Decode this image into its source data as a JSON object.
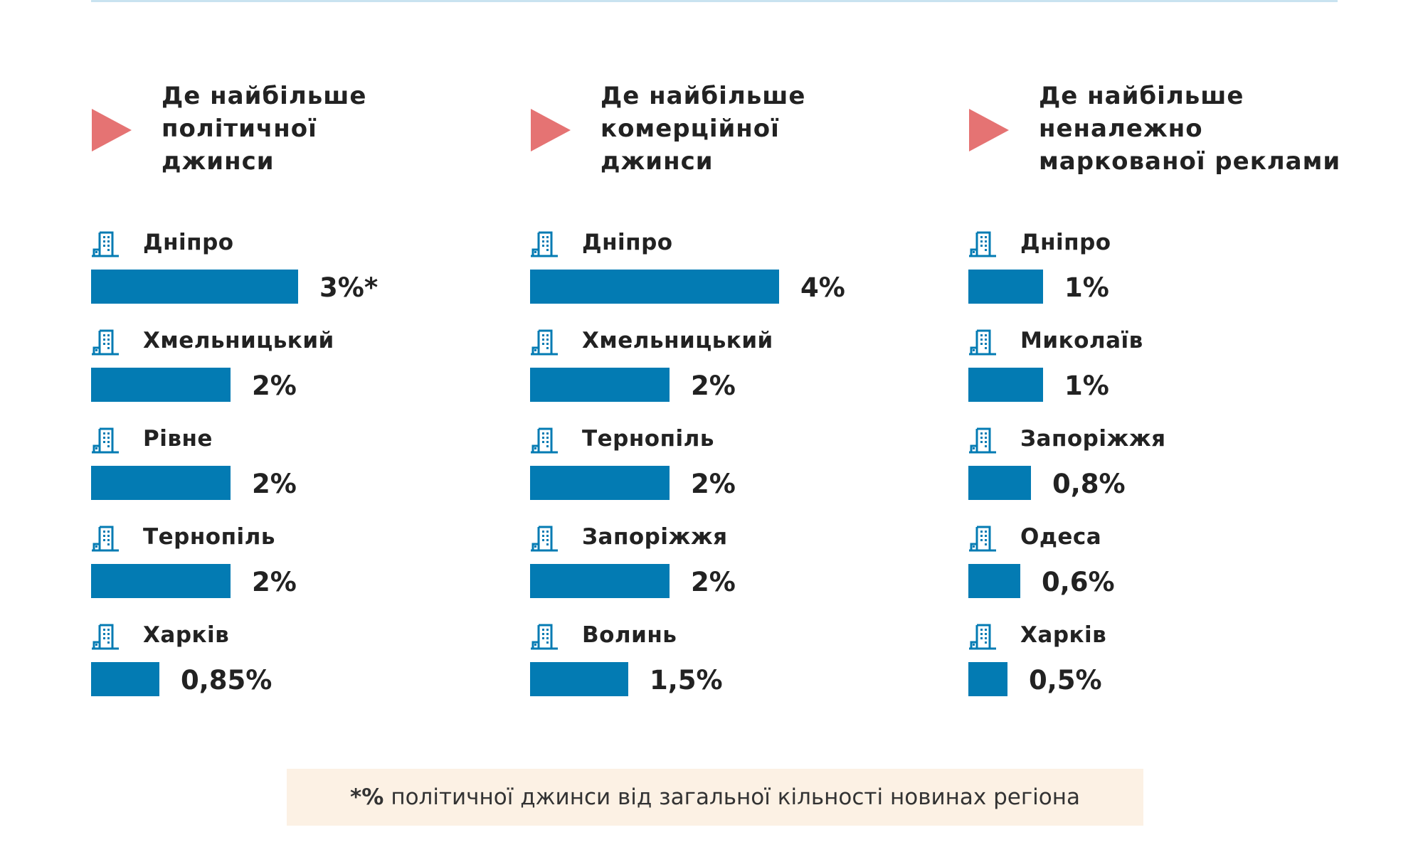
{
  "colors": {
    "bar": "#037bb3",
    "marker": "#e57373",
    "note_bg": "#fcf1e4",
    "top_line": "#c9e3f0"
  },
  "chart_data": [
    {
      "type": "bar",
      "orientation": "horizontal",
      "title": "Де найбільше політичної джинси",
      "title_lines": [
        "Де найбільше",
        "політичної",
        "джинси"
      ],
      "categories": [
        "Дніпро",
        "Хмельницький",
        "Рівне",
        "Тернопіль",
        "Харків"
      ],
      "values": [
        3,
        2,
        2,
        2,
        0.85
      ],
      "labels": [
        "3%*",
        "2%",
        "2%",
        "2%",
        "0,85%"
      ],
      "icon": "building-icon"
    },
    {
      "type": "bar",
      "orientation": "horizontal",
      "title": "Де найбільше комерційної джинси",
      "title_lines": [
        "Де найбільше",
        "комерційної",
        "джинси"
      ],
      "categories": [
        "Дніпро",
        "Хмельницький",
        "Тернопіль",
        "Запоріжжя",
        "Волинь"
      ],
      "values": [
        4,
        2,
        2,
        2,
        1.5
      ],
      "labels": [
        "4%",
        "2%",
        "2%",
        "2%",
        "1,5%"
      ],
      "icon": "building-icon"
    },
    {
      "type": "bar",
      "orientation": "horizontal",
      "title": "Де найбільше неналежно маркованої реклами",
      "title_lines": [
        "Де найбільше",
        "неналежно",
        "маркованої реклами"
      ],
      "categories": [
        "Дніпро",
        "Миколаїв",
        "Запоріжжя",
        "Одеса",
        "Харків"
      ],
      "values": [
        1,
        1,
        0.8,
        0.6,
        0.5
      ],
      "labels": [
        "1%",
        "1%",
        "0,8%",
        "0,6%",
        "0,5%"
      ],
      "icon": "building-icon"
    }
  ],
  "footnote": {
    "mark": "*%",
    "text": "політичної джинси від загальної кільності  новинах регіона"
  }
}
